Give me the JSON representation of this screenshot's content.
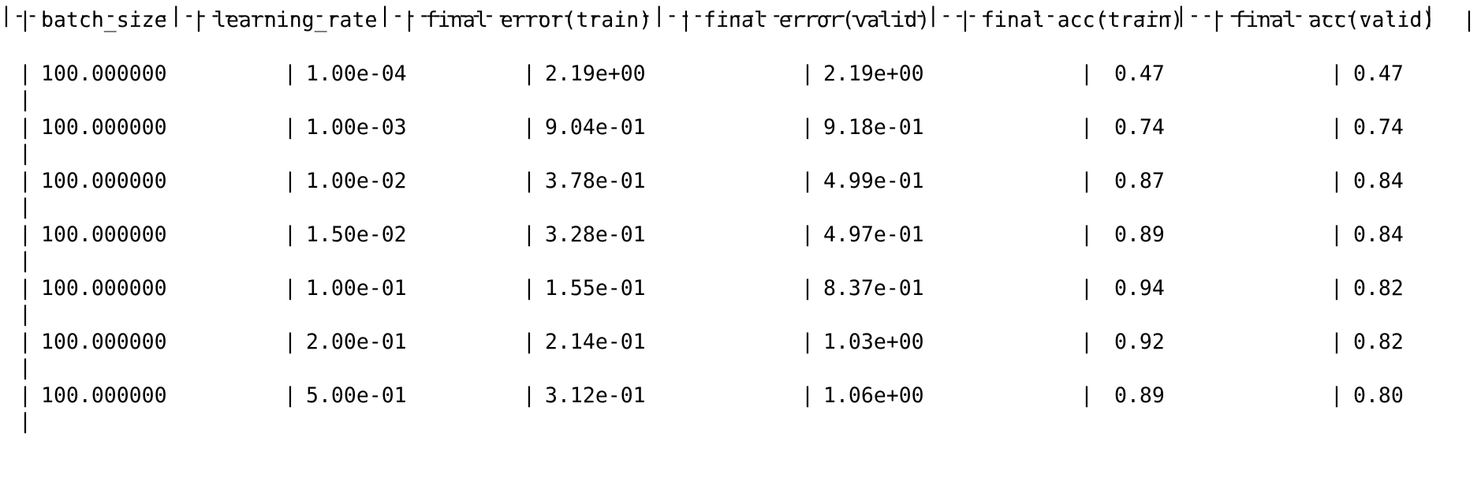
{
  "table": {
    "headers": [
      "batch_size",
      "learning_rate",
      "final error(train)",
      "final error(valid)",
      "final acc(train)",
      "final acc(valid)"
    ],
    "separator": "|------------|---------------|--------------------|--------------------|------------------|------------------|",
    "rows": [
      [
        "100.000000",
        "1.00e-04",
        "2.19e+00",
        "2.19e+00",
        "0.47",
        "0.47"
      ],
      [
        "100.000000",
        "1.00e-03",
        "9.04e-01",
        "9.18e-01",
        "0.74",
        "0.74"
      ],
      [
        "100.000000",
        "1.00e-02",
        "3.78e-01",
        "4.99e-01",
        "0.87",
        "0.84"
      ],
      [
        "100.000000",
        "1.50e-02",
        "3.28e-01",
        "4.97e-01",
        "0.89",
        "0.84"
      ],
      [
        "100.000000",
        "1.00e-01",
        "1.55e-01",
        "8.37e-01",
        "0.94",
        "0.82"
      ],
      [
        "100.000000",
        "2.00e-01",
        "2.14e-01",
        "1.03e+00",
        "0.92",
        "0.82"
      ],
      [
        "100.000000",
        "5.00e-01",
        "3.12e-01",
        "1.06e+00",
        "0.89",
        "0.80"
      ]
    ],
    "pipe_char": "|"
  }
}
